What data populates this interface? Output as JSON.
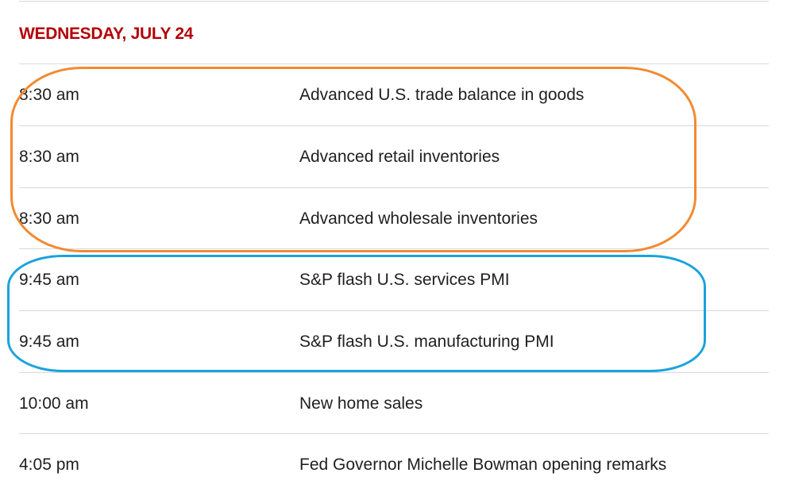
{
  "schedule": {
    "day_heading": "WEDNESDAY, JULY 24",
    "rows": [
      {
        "time": "8:30 am",
        "event": "Advanced U.S. trade balance in goods"
      },
      {
        "time": "8:30 am",
        "event": "Advanced retail inventories"
      },
      {
        "time": "8:30 am",
        "event": "Advanced wholesale inventories"
      },
      {
        "time": "9:45 am",
        "event": "S&P flash U.S. services PMI"
      },
      {
        "time": "9:45 am",
        "event": "S&P flash U.S. manufacturing PMI"
      },
      {
        "time": "10:00 am",
        "event": "New home sales"
      },
      {
        "time": "4:05 pm",
        "event": "Fed Governor Michelle Bowman opening remarks"
      }
    ]
  },
  "colors": {
    "heading": "#b30006",
    "orange_highlight": "#f28a30",
    "blue_highlight": "#1aa3dc",
    "divider": "#d9d9d9"
  }
}
